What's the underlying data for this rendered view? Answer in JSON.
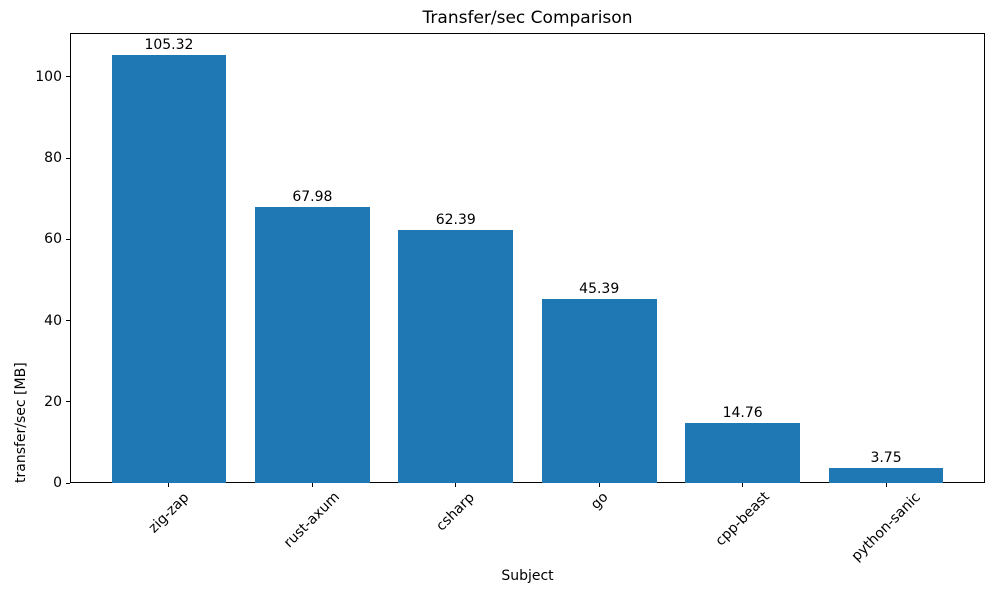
{
  "chart_data": {
    "type": "bar",
    "title": "Transfer/sec Comparison",
    "xlabel": "Subject",
    "ylabel": "transfer/sec [MB]",
    "categories": [
      "zig-zap",
      "rust-axum",
      "csharp",
      "go",
      "cpp-beast",
      "python-sanic"
    ],
    "values": [
      105.32,
      67.98,
      62.39,
      45.39,
      14.76,
      3.75
    ],
    "bar_labels": [
      "105.32",
      "67.98",
      "62.39",
      "45.39",
      "14.76",
      "3.75"
    ],
    "yticks": [
      0,
      20,
      40,
      60,
      80,
      100
    ],
    "ylim": [
      0,
      110.8
    ],
    "x_tick_rotation": 45,
    "grid": false,
    "legend": "none",
    "bar_color": "#1f77b4",
    "axis_color": "#000000"
  }
}
